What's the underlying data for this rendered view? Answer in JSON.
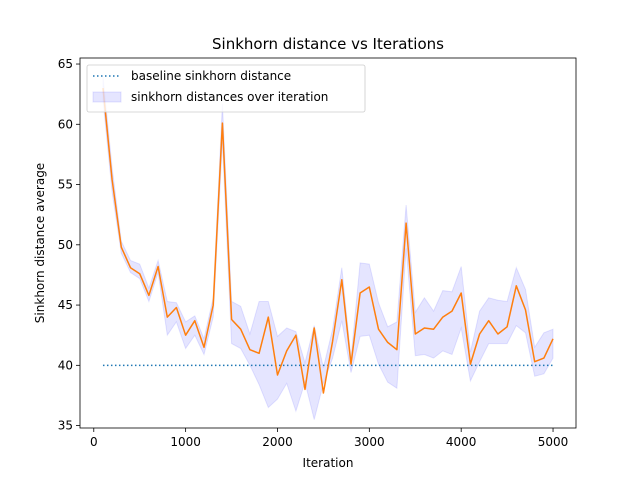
{
  "chart_data": {
    "type": "line",
    "title": "Sinkhorn distance vs Iterations",
    "xlabel": "Iteration",
    "ylabel": "Sinkhorn distance average",
    "xlim": [
      -150,
      5250
    ],
    "ylim": [
      34.8,
      65.5
    ],
    "xticks": [
      0,
      1000,
      2000,
      3000,
      4000,
      5000
    ],
    "yticks": [
      35,
      40,
      45,
      50,
      55,
      60,
      65
    ],
    "legend_position": "upper-left",
    "grid": false,
    "x": [
      100,
      200,
      300,
      400,
      500,
      600,
      700,
      800,
      900,
      1000,
      1100,
      1200,
      1300,
      1400,
      1500,
      1600,
      1700,
      1800,
      1900,
      2000,
      2100,
      2200,
      2300,
      2400,
      2500,
      2600,
      2700,
      2800,
      2900,
      3000,
      3100,
      3200,
      3300,
      3400,
      3500,
      3600,
      3700,
      3800,
      3900,
      4000,
      4100,
      4200,
      4300,
      4400,
      4500,
      4600,
      4700,
      4800,
      4900,
      5000
    ],
    "series": [
      {
        "name": "sinkhorn distances over iteration",
        "color": "#ff7f0e",
        "band_color": "#0000ff",
        "values": [
          63.0,
          55.4,
          49.8,
          48.1,
          47.6,
          45.8,
          48.2,
          44.0,
          44.8,
          42.5,
          43.7,
          41.5,
          45.0,
          60.1,
          43.8,
          43.0,
          41.3,
          41.0,
          44.0,
          39.2,
          41.2,
          42.5,
          38.0,
          43.1,
          37.7,
          42.0,
          47.1,
          40.1,
          46.0,
          46.5,
          43.0,
          41.9,
          41.3,
          51.8,
          42.6,
          43.1,
          43.0,
          44.0,
          44.5,
          46.0,
          40.1,
          42.6,
          43.7,
          42.6,
          43.2,
          46.6,
          44.6,
          40.3,
          40.6,
          42.2
        ],
        "lower": [
          62.0,
          54.4,
          49.3,
          47.7,
          47.2,
          45.3,
          47.7,
          42.5,
          43.6,
          41.4,
          42.5,
          40.9,
          44.0,
          58.5,
          41.8,
          41.4,
          40.0,
          38.4,
          36.5,
          37.2,
          38.5,
          36.2,
          38.6,
          35.5,
          38.5,
          40.6,
          43.7,
          39.4,
          42.4,
          42.5,
          40.1,
          38.6,
          38.1,
          49.7,
          40.8,
          40.9,
          40.6,
          41.2,
          40.9,
          43.1,
          38.7,
          40.3,
          41.8,
          41.8,
          41.8,
          43.3,
          42.7,
          39.1,
          39.3,
          40.6
        ],
        "upper": [
          64.0,
          56.4,
          50.3,
          48.7,
          48.4,
          46.4,
          48.7,
          45.3,
          45.2,
          43.6,
          44.1,
          42.2,
          45.6,
          61.7,
          45.3,
          44.9,
          42.6,
          45.3,
          45.3,
          42.4,
          43.1,
          42.8,
          40.2,
          43.3,
          39.8,
          43.0,
          48.1,
          40.6,
          48.5,
          48.4,
          45.2,
          43.2,
          43.6,
          53.3,
          44.4,
          45.6,
          44.5,
          46.2,
          46.1,
          48.2,
          41.1,
          44.5,
          45.6,
          45.4,
          45.3,
          48.1,
          46.3,
          41.5,
          42.7,
          43.0
        ]
      },
      {
        "name": "baseline sinkhorn distance",
        "color": "#1f77b4",
        "style": "dotted",
        "x": [
          100,
          5000
        ],
        "values": [
          40.0,
          40.0
        ]
      }
    ]
  }
}
